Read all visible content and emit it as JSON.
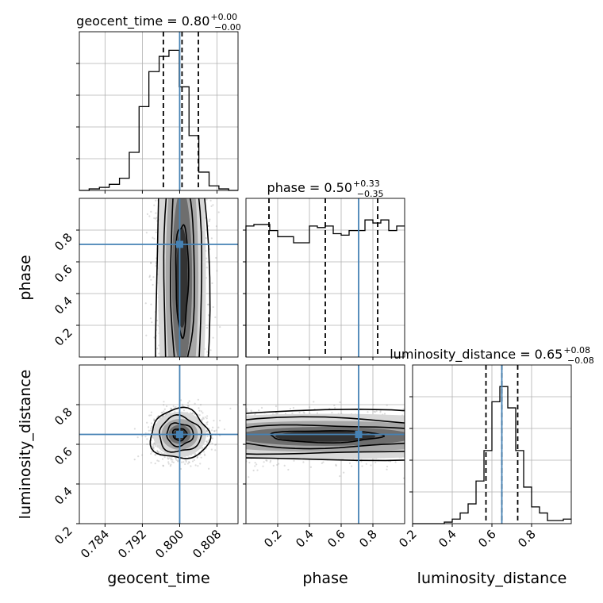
{
  "chart_data": {
    "type": "corner",
    "parameters": [
      "geocent_time",
      "phase",
      "luminosity_distance"
    ],
    "truths": {
      "geocent_time": 0.8,
      "phase": 0.71,
      "luminosity_distance": 0.65
    },
    "titles": {
      "geocent_time": {
        "prefix": "geocent_time = 0.80",
        "plus": "+0.00",
        "minus": "−0.00"
      },
      "phase": {
        "prefix": "phase = 0.50",
        "plus": "+0.33",
        "minus": "−0.35"
      },
      "luminosity_distance": {
        "prefix": "luminosity_distance = 0.65",
        "plus": "+0.08",
        "minus": "−0.08"
      }
    },
    "axis_labels": {
      "x": [
        "geocent_time",
        "phase",
        "luminosity_distance"
      ],
      "y": [
        "phase",
        "luminosity_distance"
      ]
    },
    "ranges": {
      "geocent_time": [
        0.7785,
        0.8125
      ],
      "phase": [
        0.0,
        1.0
      ],
      "luminosity_distance": [
        0.2,
        1.0
      ]
    },
    "ticks": {
      "geocent_time": [
        0.784,
        0.792,
        0.8,
        0.808
      ],
      "phase": [
        0.2,
        0.4,
        0.6,
        0.8
      ],
      "luminosity_distance": [
        0.2,
        0.4,
        0.6,
        0.8
      ]
    },
    "tick_labels": {
      "geocent_time": [
        "0.784",
        "0.792",
        "0.800",
        "0.808"
      ],
      "phase": [
        "0.2",
        "0.4",
        "0.6",
        "0.8"
      ],
      "luminosity_distance": [
        "0.2",
        "0.4",
        "0.6",
        "0.8"
      ]
    },
    "quantiles": {
      "geocent_time": [
        0.7965,
        0.8005,
        0.804
      ],
      "phase": [
        0.145,
        0.5,
        0.83
      ],
      "luminosity_distance": [
        0.57,
        0.65,
        0.73
      ]
    },
    "histograms": {
      "geocent_time": {
        "bins": [
          0.7785,
          0.7806,
          0.7828,
          0.7849,
          0.7871,
          0.7892,
          0.7913,
          0.7934,
          0.7956,
          0.7977,
          0.7999,
          0.802,
          0.8041,
          0.8063,
          0.8084,
          0.8105,
          0.8125
        ],
        "counts": [
          0.0,
          0.01,
          0.02,
          0.04,
          0.08,
          0.25,
          0.55,
          0.78,
          0.88,
          0.92,
          0.68,
          0.36,
          0.12,
          0.03,
          0.01,
          0.0
        ]
      },
      "phase": {
        "bins": [
          0,
          0.05,
          0.1,
          0.15,
          0.2,
          0.25,
          0.3,
          0.35,
          0.4,
          0.45,
          0.5,
          0.55,
          0.6,
          0.65,
          0.7,
          0.75,
          0.8,
          0.85,
          0.9,
          0.95,
          1.0
        ],
        "counts": [
          0.86,
          0.87,
          0.87,
          0.83,
          0.79,
          0.79,
          0.75,
          0.75,
          0.86,
          0.85,
          0.86,
          0.81,
          0.8,
          0.83,
          0.83,
          0.9,
          0.88,
          0.9,
          0.83,
          0.86
        ]
      },
      "luminosity_distance": {
        "bins": [
          0.2,
          0.24,
          0.28,
          0.32,
          0.36,
          0.4,
          0.44,
          0.48,
          0.52,
          0.56,
          0.6,
          0.64,
          0.68,
          0.72,
          0.76,
          0.8,
          0.84,
          0.88,
          0.92,
          0.96,
          1.0
        ],
        "counts": [
          0.0,
          0.0,
          0.0,
          0.0,
          0.01,
          0.03,
          0.07,
          0.13,
          0.28,
          0.48,
          0.8,
          0.9,
          0.76,
          0.48,
          0.24,
          0.11,
          0.07,
          0.02,
          0.02,
          0.03
        ]
      }
    },
    "gridlines": true
  }
}
